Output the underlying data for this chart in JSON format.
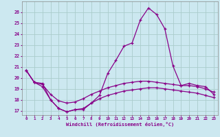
{
  "xlabel": "Windchill (Refroidissement éolien,°C)",
  "background_color": "#cce8f0",
  "grid_color": "#aacccc",
  "line_color": "#880088",
  "x_hours": [
    0,
    1,
    2,
    3,
    4,
    5,
    6,
    7,
    8,
    9,
    10,
    11,
    12,
    13,
    14,
    15,
    16,
    17,
    18,
    19,
    20,
    21,
    22,
    23
  ],
  "upper": [
    20.7,
    19.6,
    19.5,
    18.0,
    17.2,
    16.9,
    17.1,
    17.1,
    17.7,
    18.4,
    20.4,
    21.6,
    22.9,
    23.2,
    25.3,
    26.4,
    25.8,
    24.5,
    21.1,
    19.3,
    19.5,
    19.3,
    19.2,
    18.5
  ],
  "middle": [
    20.7,
    19.6,
    19.4,
    18.5,
    17.9,
    17.7,
    17.8,
    18.1,
    18.5,
    18.8,
    19.1,
    19.3,
    19.5,
    19.6,
    19.7,
    19.7,
    19.6,
    19.5,
    19.4,
    19.3,
    19.3,
    19.2,
    19.0,
    18.7
  ],
  "lower": [
    20.7,
    19.6,
    19.2,
    18.0,
    17.2,
    16.9,
    17.1,
    17.2,
    17.7,
    18.1,
    18.4,
    18.6,
    18.8,
    18.9,
    19.0,
    19.1,
    19.1,
    19.0,
    18.9,
    18.8,
    18.7,
    18.6,
    18.4,
    18.2
  ],
  "ylim_min": 16.6,
  "ylim_max": 27.0,
  "yticks": [
    17,
    18,
    19,
    20,
    21,
    22,
    23,
    24,
    25,
    26
  ]
}
